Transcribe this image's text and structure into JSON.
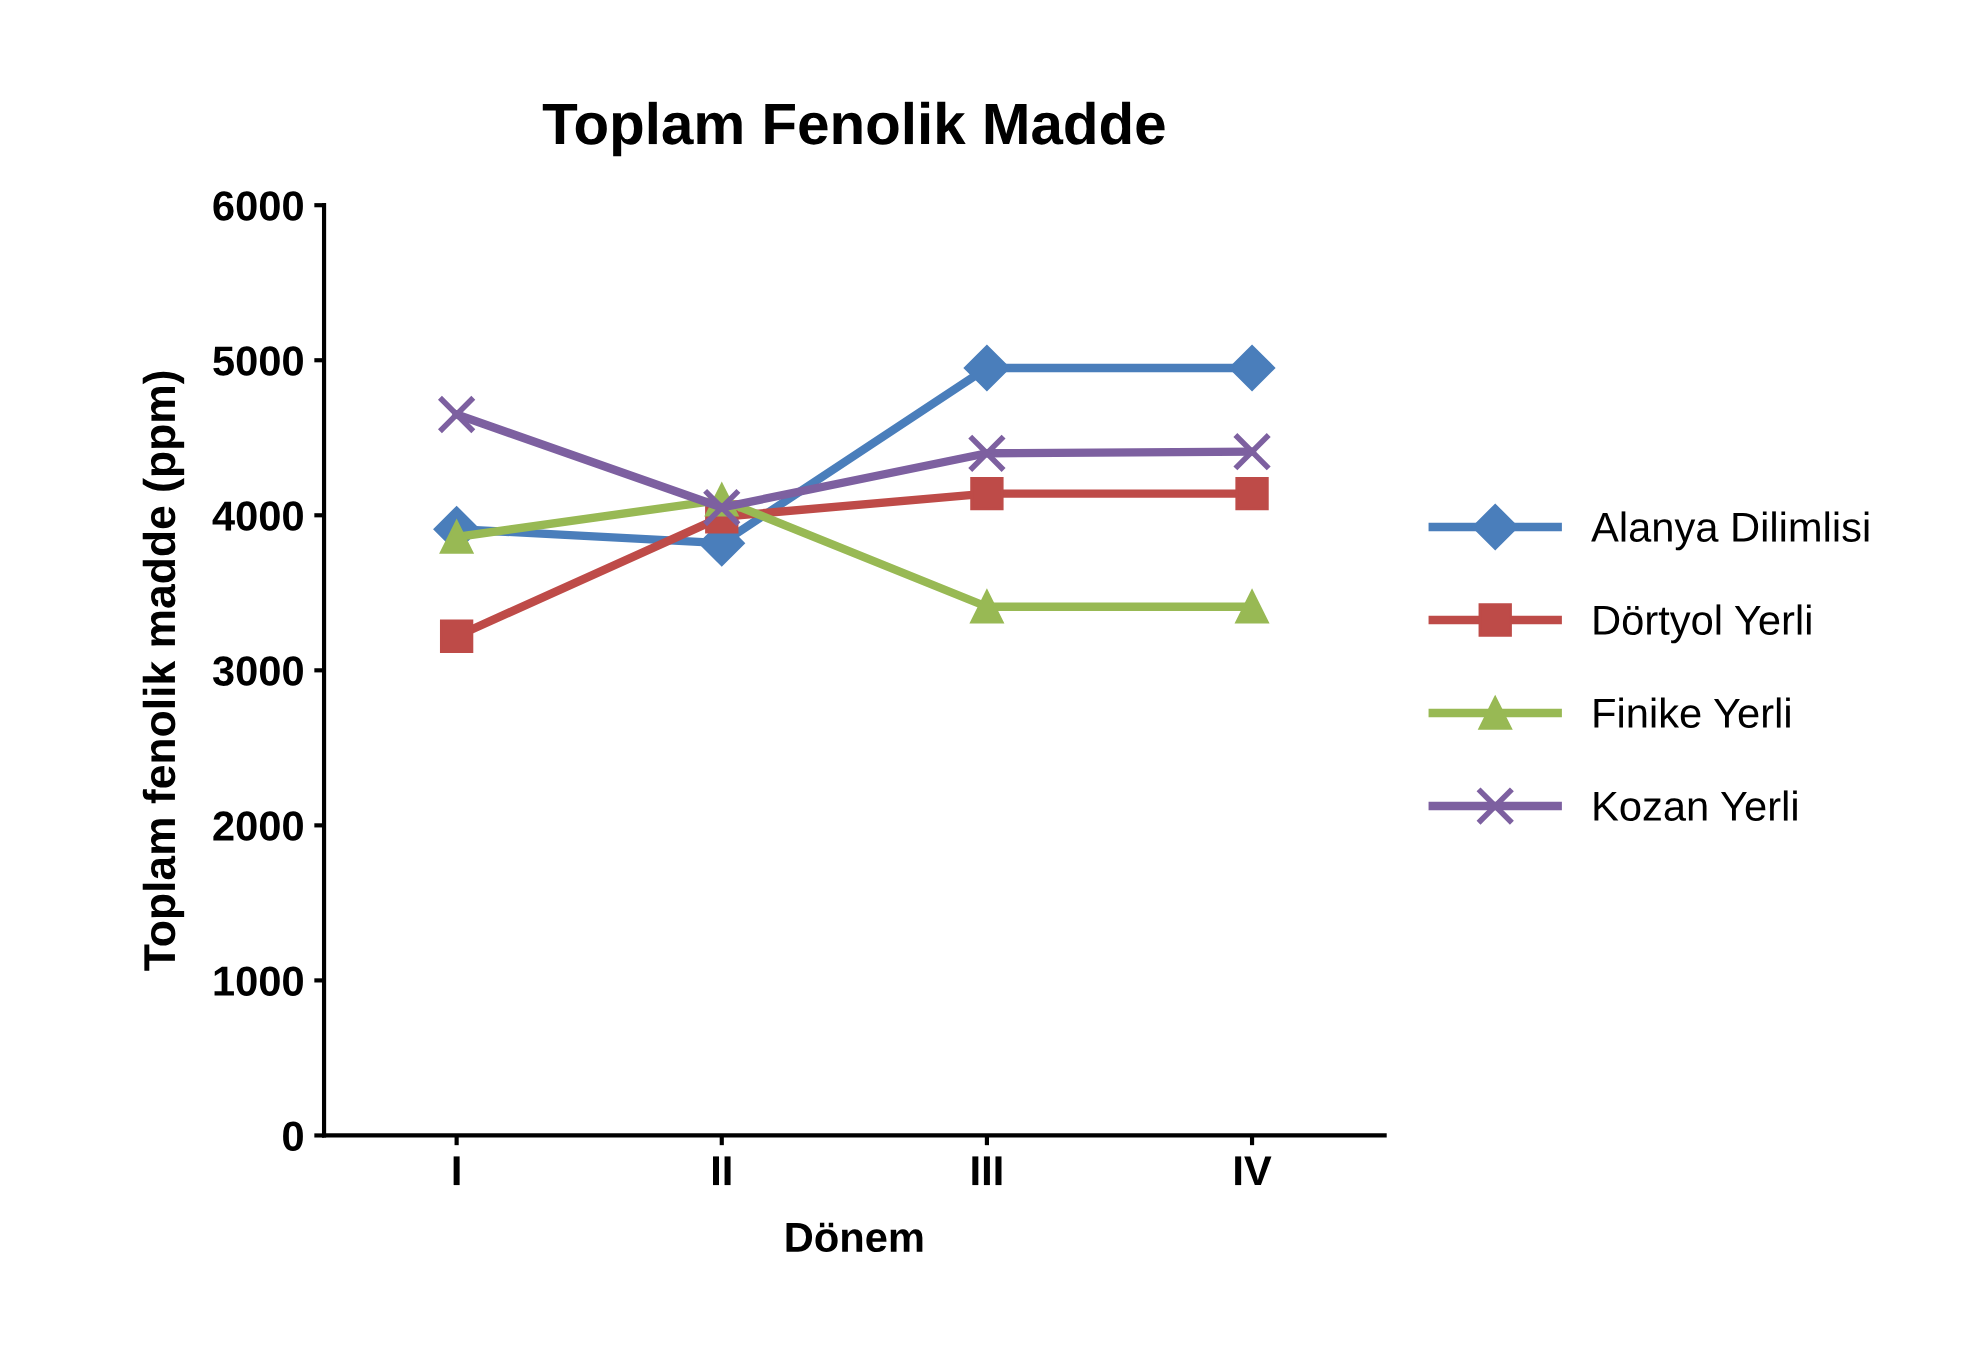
{
  "chart_data": {
    "type": "line",
    "title": "Toplam Fenolik Madde",
    "xlabel": "Dönem",
    "ylabel": "Toplam fenolik madde (ppm)",
    "categories": [
      "I",
      "II",
      "III",
      "IV"
    ],
    "series": [
      {
        "name": "Alanya Dilimlisi",
        "color": "#4a7ebb",
        "marker": "diamond",
        "values": [
          3910,
          3820,
          4950,
          4950
        ]
      },
      {
        "name": "Dörtyol Yerli",
        "color": "#be4b48",
        "marker": "square",
        "values": [
          3220,
          3990,
          4140,
          4140
        ]
      },
      {
        "name": "Finike Yerli",
        "color": "#98b954",
        "marker": "triangle",
        "values": [
          3860,
          4100,
          3410,
          3410
        ]
      },
      {
        "name": "Kozan Yerli",
        "color": "#7d60a0",
        "marker": "cross",
        "values": [
          4650,
          4050,
          4400,
          4410
        ]
      }
    ],
    "ylim": [
      0,
      6000
    ],
    "yticks": [
      0,
      1000,
      2000,
      3000,
      4000,
      5000,
      6000
    ],
    "grid": false,
    "legend": "right"
  }
}
